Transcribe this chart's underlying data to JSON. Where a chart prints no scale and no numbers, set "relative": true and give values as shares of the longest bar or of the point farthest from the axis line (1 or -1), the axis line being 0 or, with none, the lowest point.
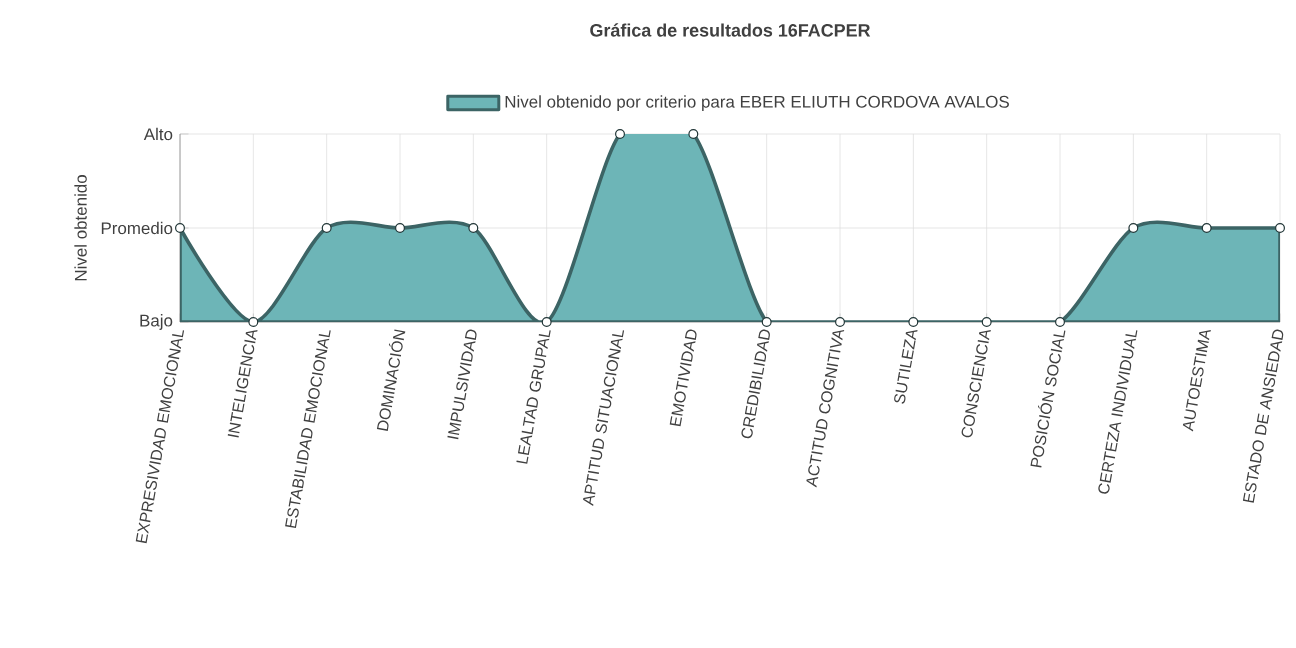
{
  "chart_data": {
    "type": "area",
    "title": "Gráfica de resultados 16FACPER",
    "ylabel": "Nivel obtenido",
    "categories": [
      "EXPRESIVIDAD EMOCIONAL",
      "INTELIGENCIA",
      "ESTABILIDAD EMOCIONAL",
      "DOMINACIÓN",
      "IMPULSIVIDAD",
      "LEALTAD GRUPAL",
      "APTITUD SITUACIONAL",
      "EMOTIVIDAD",
      "CREDIBILIDAD",
      "ACTITUD COGNITIVA",
      "SUTILEZA",
      "CONSCIENCIA",
      "POSICIÓN SOCIAL",
      "CERTEZA INDIVIDUAL",
      "AUTOESTIMA",
      "ESTADO DE ANSIEDAD"
    ],
    "series": [
      {
        "name": "Nivel obtenido por criterio para EBER ELIUTH CORDOVA AVALOS",
        "color": "#6db5b7",
        "values": [
          0.5,
          0,
          0.5,
          0.5,
          0.5,
          0,
          1,
          1,
          0,
          0,
          0,
          0,
          0,
          0.5,
          0.5,
          0.5
        ]
      }
    ],
    "relative": true,
    "annotations": [
      "Bajo",
      "Promedio",
      "Alto"
    ],
    "grid": true,
    "legend": "top",
    "marker": "circle",
    "line_style": "solid"
  }
}
